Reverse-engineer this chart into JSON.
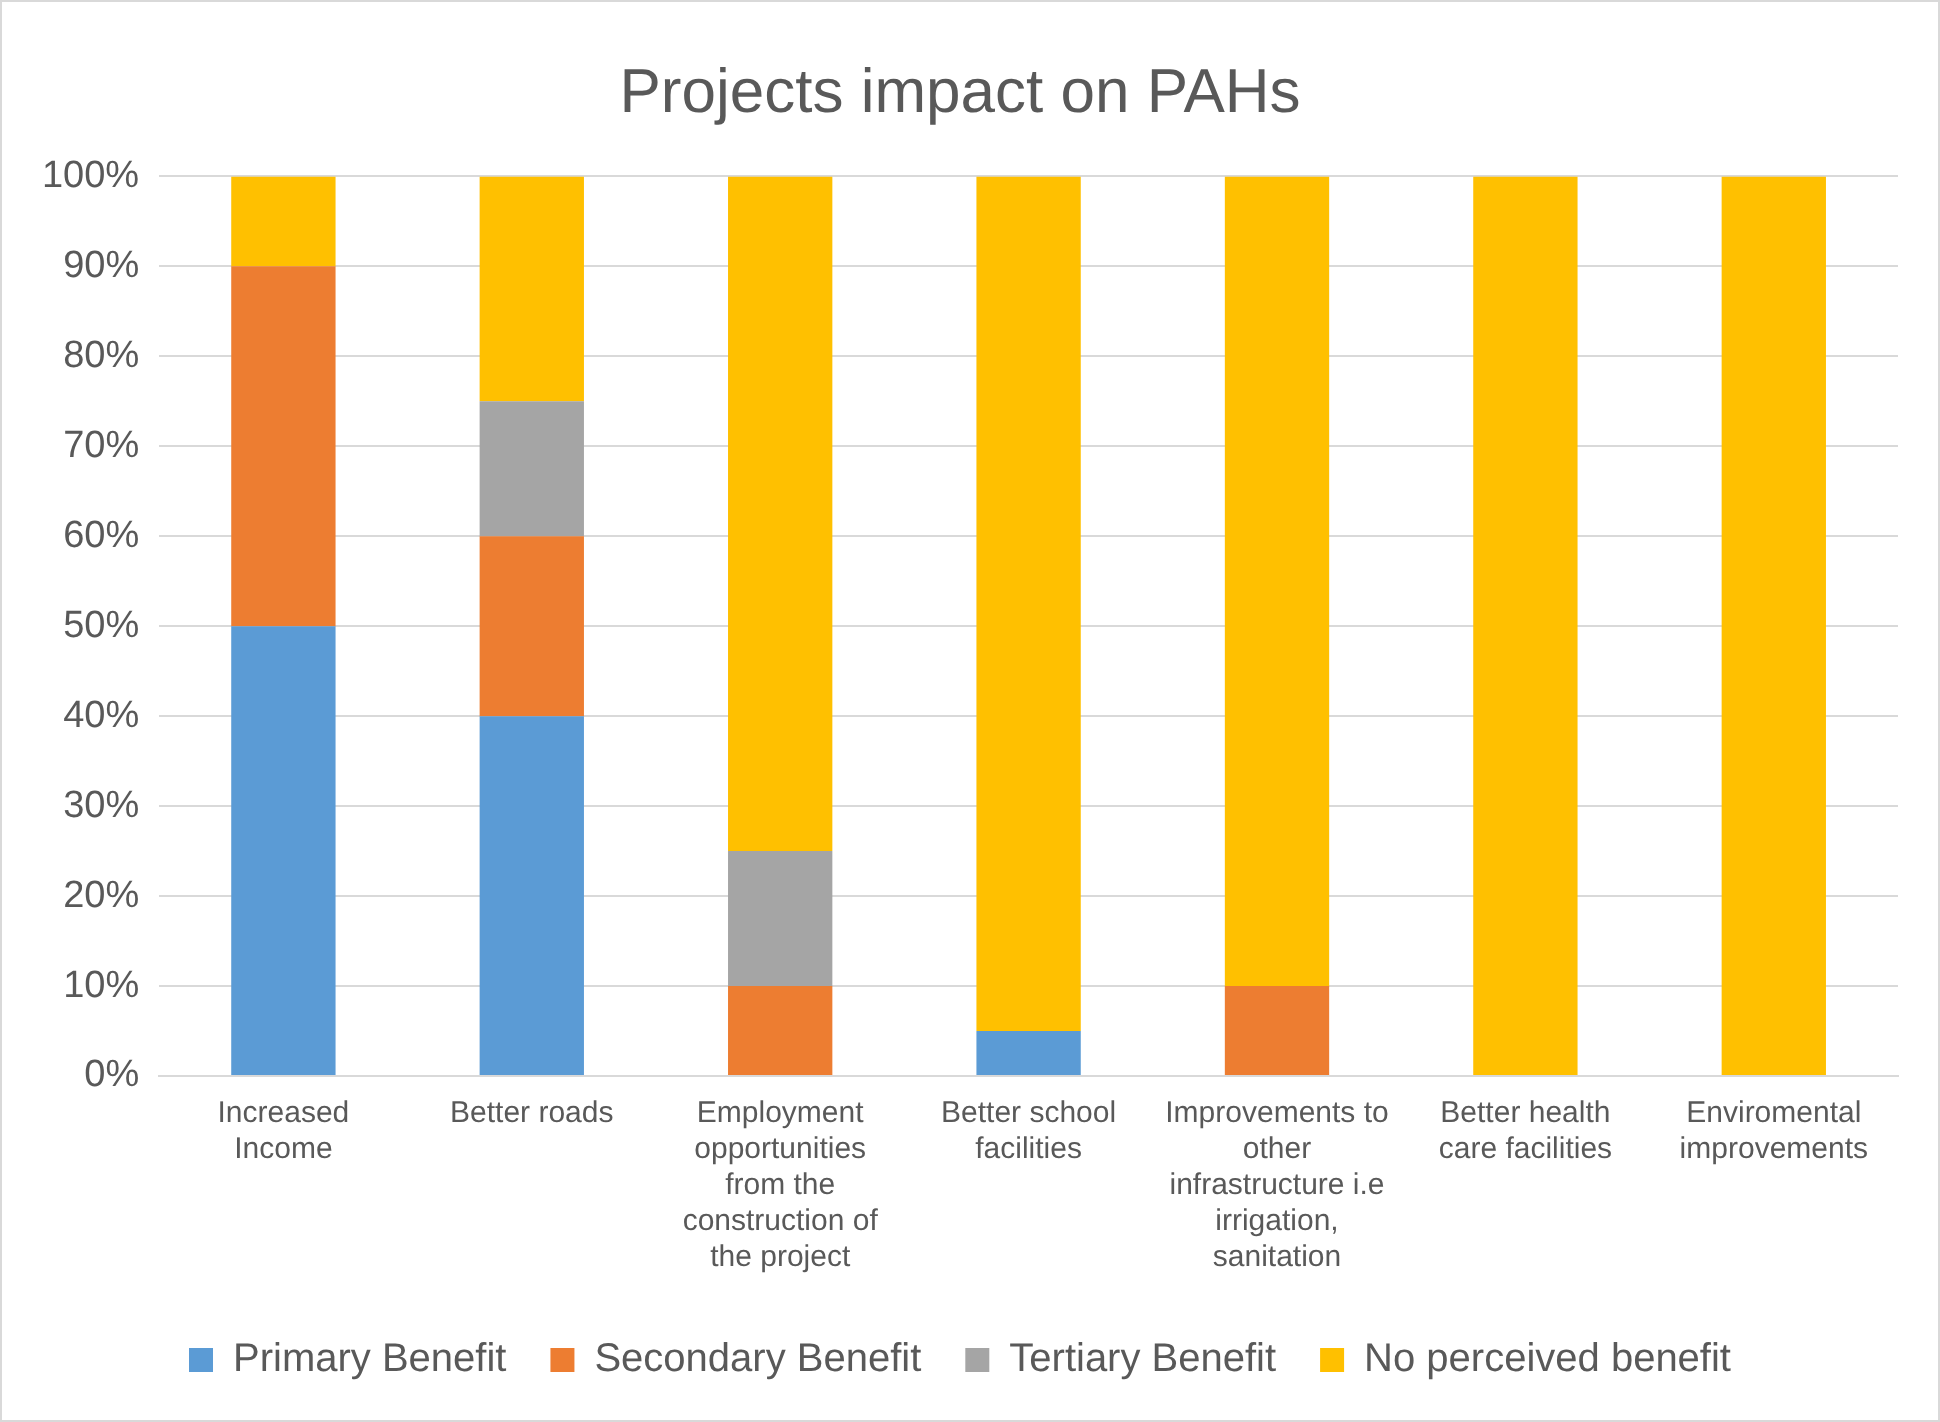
{
  "chart_data": {
    "type": "bar",
    "title": "Projects impact on PAHs",
    "stacked": true,
    "grid": "y",
    "legend": "bottom",
    "categories": [
      "Increased Income",
      "Better roads",
      "Employment opportunities from the construction of the project",
      "Better school facilities",
      "Improvements to other infrastructure i.e irrigation, sanitation",
      "Better health care facilities",
      "Enviromental improvements"
    ],
    "ylim": [
      0,
      100
    ],
    "yticks": [
      {
        "value": 0,
        "label": "0%"
      },
      {
        "value": 10,
        "label": "10%"
      },
      {
        "value": 20,
        "label": "20%"
      },
      {
        "value": 30,
        "label": "30%"
      },
      {
        "value": 40,
        "label": "40%"
      },
      {
        "value": 50,
        "label": "50%"
      },
      {
        "value": 60,
        "label": "60%"
      },
      {
        "value": 70,
        "label": "70%"
      },
      {
        "value": 80,
        "label": "80%"
      },
      {
        "value": 90,
        "label": "90%"
      },
      {
        "value": 100,
        "label": "100%"
      }
    ],
    "series": [
      {
        "name": "Primary Benefit",
        "color": "#5b9bd5",
        "values": [
          50,
          40,
          0,
          5,
          0,
          0,
          0
        ]
      },
      {
        "name": "Secondary Benefit",
        "color": "#ed7d31",
        "values": [
          40,
          20,
          10,
          0,
          10,
          0,
          0
        ]
      },
      {
        "name": "Tertiary Benefit",
        "color": "#a5a5a5",
        "values": [
          0,
          15,
          15,
          0,
          0,
          0,
          0
        ]
      },
      {
        "name": "No perceived benefit",
        "color": "#ffc000",
        "values": [
          10,
          25,
          75,
          95,
          90,
          100,
          100
        ]
      }
    ]
  }
}
